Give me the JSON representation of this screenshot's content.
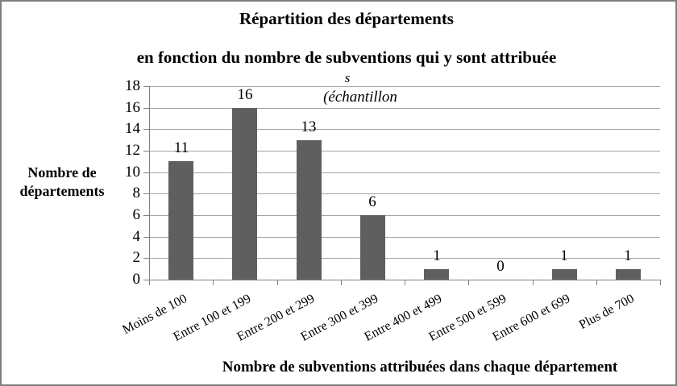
{
  "chart_data": {
    "type": "bar",
    "title_line1": "Répartition des départements",
    "title_line2": "en fonction du nombre de subventions qui y sont attribuée",
    "title_overflow_line3": "s",
    "title_overflow_line4": "(échantillon",
    "ylabel_lines": [
      "Nombre de",
      "départements"
    ],
    "xlabel": "Nombre de subventions attribuées dans chaque département",
    "categories": [
      "Moins de 100",
      "Entre 100 et 199",
      "Entre 200 et 299",
      "Entre 300 et 399",
      "Entre 400 et 499",
      "Entre 500 et 599",
      "Entre 600 et 699",
      "Plus de 700"
    ],
    "values": [
      11,
      16,
      13,
      6,
      1,
      0,
      1,
      1
    ],
    "y_ticks": [
      0,
      2,
      4,
      6,
      8,
      10,
      12,
      14,
      16,
      18
    ],
    "ylim": [
      0,
      18
    ],
    "grid": true,
    "legend_position": "none",
    "data_labels": true,
    "colors": {
      "bar": "#5f5f5f",
      "gridline": "#a3a3a3",
      "axis": "#808080",
      "frame_border": "#7f7f7f",
      "text": "#000000"
    }
  }
}
